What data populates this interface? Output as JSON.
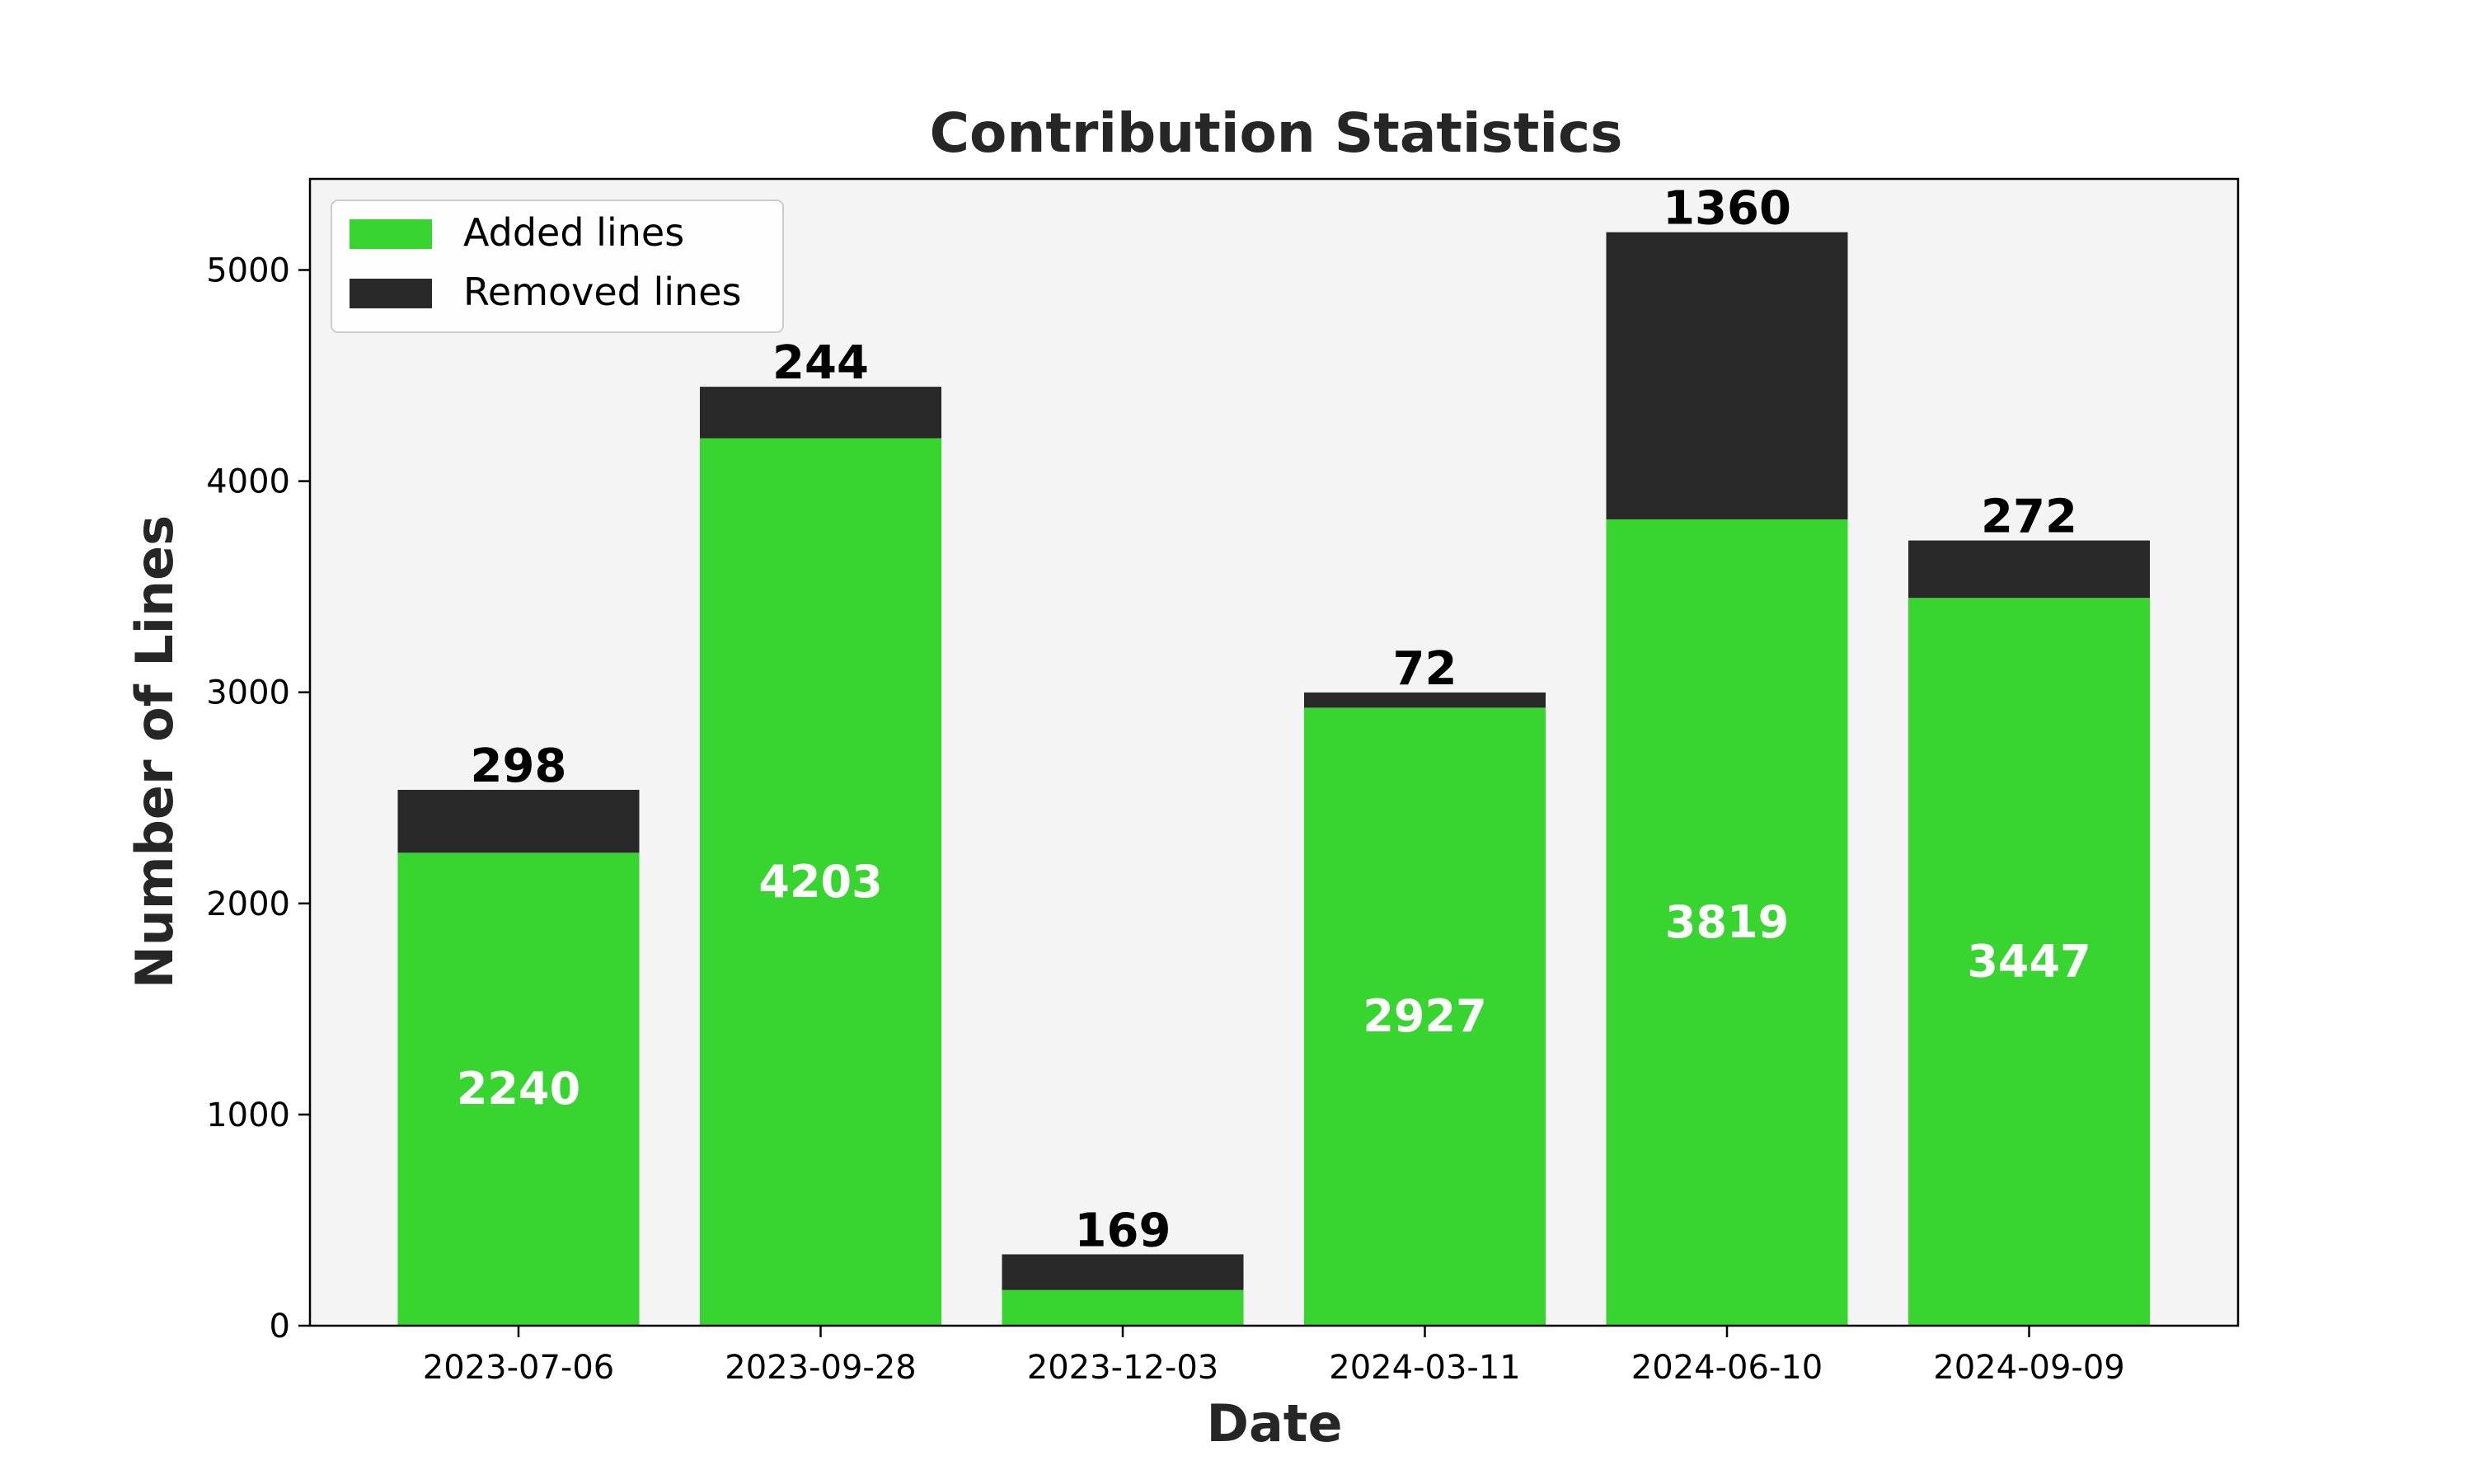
{
  "chart_data": {
    "type": "bar",
    "stacked": true,
    "title": "Contribution Statistics",
    "xlabel": "Date",
    "ylabel": "Number of Lines",
    "categories": [
      "2023-07-06",
      "2023-09-28",
      "2023-12-03",
      "2024-03-11",
      "2024-06-10",
      "2024-09-09"
    ],
    "series": [
      {
        "name": "Added lines",
        "color": "#38d430",
        "values": [
          2240,
          4203,
          169,
          2927,
          3819,
          3447
        ]
      },
      {
        "name": "Removed lines",
        "color": "#282828",
        "values": [
          298,
          244,
          169,
          72,
          1360,
          272
        ]
      }
    ],
    "bar_labels_inside": [
      "2240",
      "4203",
      "",
      "2927",
      "3819",
      "3447"
    ],
    "bar_labels_top": [
      "298",
      "244",
      "169",
      "72",
      "1360",
      "272"
    ],
    "ylim": [
      0,
      5430
    ],
    "yticks": [
      0,
      1000,
      2000,
      3000,
      4000,
      5000
    ],
    "ytick_labels": [
      "0",
      "1000",
      "2000",
      "3000",
      "4000",
      "5000"
    ],
    "grid": false,
    "legend_position": "top-left",
    "plot_background": "#f4f4f4"
  }
}
